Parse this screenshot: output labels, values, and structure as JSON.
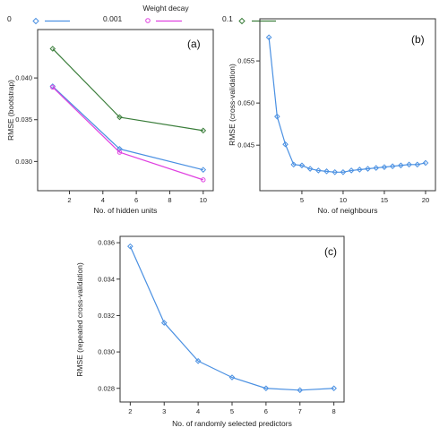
{
  "chart_data": [
    {
      "type": "line",
      "panel_label": "(a)",
      "xlabel": "No. of hidden units",
      "ylabel": "RMSE (bootstrap)",
      "x": [
        1,
        5,
        10
      ],
      "xticks": [
        2,
        4,
        6,
        8,
        10
      ],
      "xlim": [
        0.1,
        10.6
      ],
      "yticks": [
        0.03,
        0.035,
        0.04
      ],
      "ytick_labels": [
        "0.030",
        "0.035",
        "0.040"
      ],
      "ylim": [
        0.0265,
        0.0458
      ],
      "legend": {
        "title": "Weight decay",
        "placement": "top"
      },
      "series": [
        {
          "name": "0",
          "values": [
            0.039,
            0.0315,
            0.029
          ],
          "color": "#4a90e2",
          "marker": "diamond"
        },
        {
          "name": "0.001",
          "values": [
            0.0389,
            0.0311,
            0.0278
          ],
          "color": "#e040e0",
          "marker": "circle"
        },
        {
          "name": "0.1",
          "values": [
            0.0435,
            0.0353,
            0.0337
          ],
          "color": "#3a7d3a",
          "marker": "diamond"
        }
      ]
    },
    {
      "type": "line",
      "panel_label": "(b)",
      "xlabel": "No. of neighbours",
      "ylabel": "RMSE (cross-validation)",
      "x": [
        1,
        2,
        3,
        4,
        5,
        6,
        7,
        8,
        9,
        10,
        11,
        12,
        13,
        14,
        15,
        16,
        17,
        18,
        19,
        20
      ],
      "xticks": [
        5,
        10,
        15,
        20
      ],
      "xlim": [
        -0.1,
        21.2
      ],
      "yticks": [
        0.045,
        0.05,
        0.055
      ],
      "ytick_labels": [
        "0.045",
        "0.050",
        "0.055"
      ],
      "ylim": [
        0.0396,
        0.06
      ],
      "series": [
        {
          "values": [
            0.0578,
            0.0484,
            0.0451,
            0.0427,
            0.0426,
            0.0422,
            0.042,
            0.0419,
            0.0418,
            0.0418,
            0.042,
            0.0421,
            0.0422,
            0.0423,
            0.0424,
            0.0425,
            0.0426,
            0.0427,
            0.0427,
            0.0429
          ],
          "color": "#4a90e2",
          "marker": "diamond"
        }
      ]
    },
    {
      "type": "line",
      "panel_label": "(c)",
      "xlabel": "No. of randomly selected predictors",
      "ylabel": "RMSE (repeated cross-validation)",
      "x": [
        2,
        3,
        4,
        5,
        6,
        7,
        8
      ],
      "xticks": [
        2,
        3,
        4,
        5,
        6,
        7,
        8
      ],
      "xlim": [
        1.7,
        8.3
      ],
      "yticks": [
        0.028,
        0.03,
        0.032,
        0.034,
        0.036
      ],
      "ytick_labels": [
        "0.028",
        "0.030",
        "0.032",
        "0.034",
        "0.036"
      ],
      "ylim": [
        0.02725,
        0.03635
      ],
      "series": [
        {
          "values": [
            0.0358,
            0.0316,
            0.0295,
            0.0286,
            0.028,
            0.0279,
            0.028
          ],
          "color": "#4a90e2",
          "marker": "diamond"
        }
      ]
    }
  ]
}
